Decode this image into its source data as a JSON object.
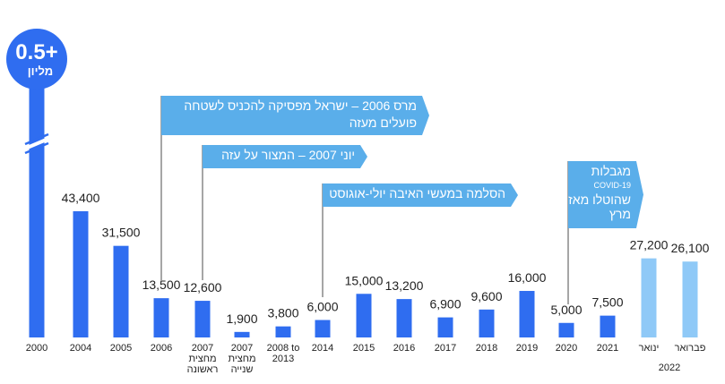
{
  "chart_data": {
    "type": "bar",
    "colors": {
      "bar": "#2f6df0",
      "bar_light": "#8fc9f7",
      "annotation": "#5aaeea",
      "line": "#4d4d4d"
    },
    "bars": [
      {
        "label": "2000",
        "label2": "",
        "value": 500000,
        "value_label": "",
        "overflow": true,
        "color": "#2f6df0"
      },
      {
        "label": "2004",
        "label2": "",
        "value": 43400,
        "value_label": "43,400",
        "color": "#2f6df0"
      },
      {
        "label": "2005",
        "label2": "",
        "value": 31500,
        "value_label": "31,500",
        "color": "#2f6df0"
      },
      {
        "label": "2006",
        "label2": "",
        "value": 13500,
        "value_label": "13,500",
        "color": "#2f6df0"
      },
      {
        "label": "2007",
        "label2": "מחצית",
        "label3": "ראשונה",
        "value": 12600,
        "value_label": "12,600",
        "color": "#2f6df0"
      },
      {
        "label": "2007",
        "label2": "מחצית",
        "label3": "שנייה",
        "value": 1900,
        "value_label": "1,900",
        "color": "#2f6df0"
      },
      {
        "label": "2008 to",
        "label2": "2013",
        "value": 3800,
        "value_label": "3,800",
        "color": "#2f6df0"
      },
      {
        "label": "2014",
        "label2": "",
        "value": 6000,
        "value_label": "6,000",
        "color": "#2f6df0"
      },
      {
        "label": "2015",
        "label2": "",
        "value": 15000,
        "value_label": "15,000",
        "color": "#2f6df0"
      },
      {
        "label": "2016",
        "label2": "",
        "value": 13200,
        "value_label": "13,200",
        "color": "#2f6df0"
      },
      {
        "label": "2017",
        "label2": "",
        "value": 6900,
        "value_label": "6,900",
        "color": "#2f6df0"
      },
      {
        "label": "2018",
        "label2": "",
        "value": 9600,
        "value_label": "9,600",
        "color": "#2f6df0"
      },
      {
        "label": "2019",
        "label2": "",
        "value": 16000,
        "value_label": "16,000",
        "color": "#2f6df0"
      },
      {
        "label": "2020",
        "label2": "",
        "value": 5000,
        "value_label": "5,000",
        "color": "#2f6df0"
      },
      {
        "label": "2021",
        "label2": "",
        "value": 7500,
        "value_label": "7,500",
        "color": "#2f6df0"
      },
      {
        "label": "ינואר",
        "label2": "",
        "value": 27200,
        "value_label": "27,200",
        "color": "#8fc9f7"
      },
      {
        "label": "פברואר",
        "label2": "",
        "value": 26100,
        "value_label": "26,100",
        "color": "#8fc9f7"
      }
    ],
    "group_label": "2022",
    "overflow_bubble": {
      "big": "0.5+",
      "small": "מליון"
    },
    "annotations": [
      {
        "lines": [
          "מרס 2006 – ישראל מפסיקה להכניס לשטחה",
          "פועלים מעזה"
        ],
        "bar_index": 3
      },
      {
        "lines": [
          "יוני 2007 – המצור על עזה"
        ],
        "bar_index": 4
      },
      {
        "lines": [
          "הסלמה במעשי האיבה יולי-אוגוסט"
        ],
        "bar_index": 7
      },
      {
        "lines": [
          "מגבלות",
          "COVID-19",
          "שהוטלו מאז",
          "מרץ"
        ],
        "bar_index": 13
      }
    ]
  }
}
